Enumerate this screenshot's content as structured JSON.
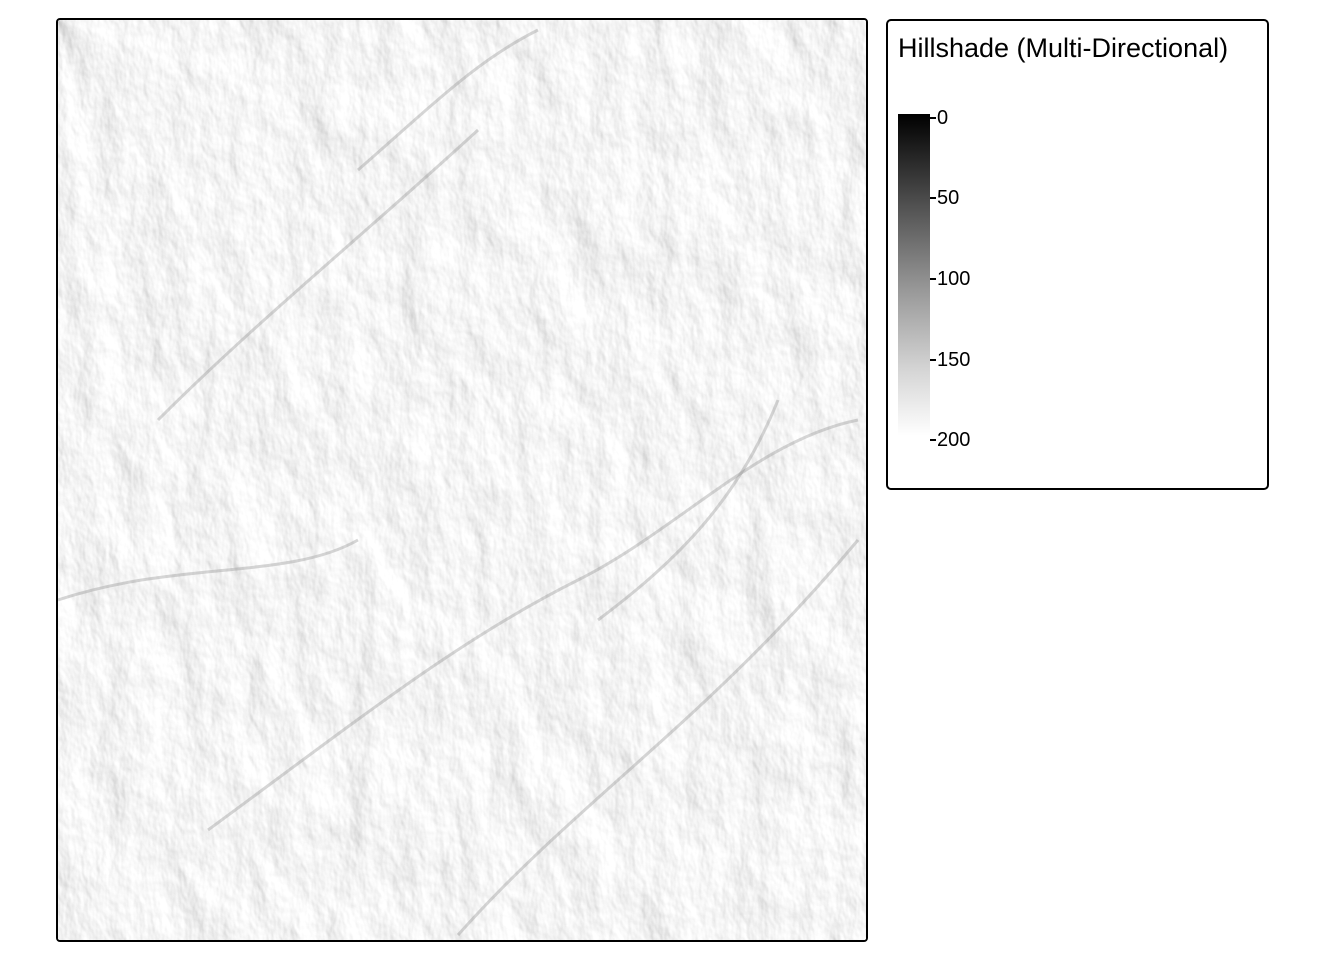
{
  "map": {
    "layer": "hillshade raster",
    "colormap": [
      "#000000",
      "#ffffff"
    ]
  },
  "legend": {
    "title": "Hillshade (Multi-Directional)",
    "range": [
      0,
      200
    ],
    "ticks": [
      "0",
      "50",
      "100",
      "150",
      "200"
    ],
    "placement": "right"
  }
}
